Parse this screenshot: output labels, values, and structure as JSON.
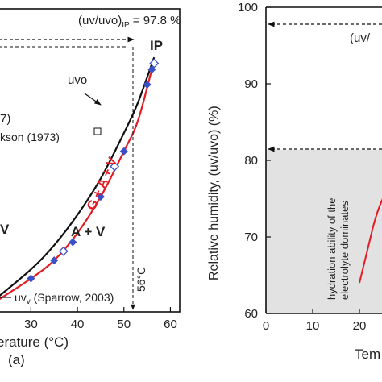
{
  "left_panel": {
    "ratio_label": "(uv/uvo)",
    "ratio_sub": "IP",
    "ratio_value": " = 97.8 %",
    "ip_label": "IP",
    "uvo_label": "uvo",
    "ref_1_fragment": "7)",
    "ref_2_fragment": "kson (1973)",
    "region_g_a_v": "G + A + V",
    "region_a_v": "A + V",
    "region_v_fragment": "V",
    "temp_marker": "56°C",
    "uv_legend_symbol": "uv",
    "uv_legend_text": " (Sparrow, 2003)",
    "xlabel_fragment": "erature (°C)",
    "panel_label": "(a)",
    "colors": {
      "uvo_curve": "#111111",
      "uv_curve": "#e31b23",
      "points": "#3a50c8"
    }
  },
  "right_panel": {
    "ylabel": "Relative humidity, (uv/uvo) (%)",
    "xlabel_fragment": "Tem",
    "ratio_fragment": "(uv/",
    "shaded_text_line1": "hydration ability of the",
    "shaded_text_line2": "electrolyte dominates",
    "colors": {
      "shade": "#e2e2e2",
      "curve": "#e31b23"
    }
  },
  "chart_data": [
    {
      "type": "line",
      "title": "",
      "xlabel": "Temperature (°C)",
      "ylabel": "",
      "xlim": [
        23,
        62
      ],
      "x_ticks": [
        30,
        40,
        50,
        60
      ],
      "series": [
        {
          "name": "uvo",
          "x": [
            23,
            30,
            35,
            40,
            45,
            50,
            53,
            56.5
          ],
          "y": [
            5,
            14,
            22,
            32,
            44,
            59,
            69,
            84
          ]
        },
        {
          "name": "uv (Sparrow, 2003)",
          "x": [
            23,
            30,
            35,
            40,
            45,
            50,
            53,
            56
          ],
          "y": [
            4,
            11,
            17,
            26,
            38,
            53,
            63,
            80
          ]
        }
      ],
      "points": {
        "x": [
          30,
          35,
          39,
          45,
          50,
          55,
          56
        ],
        "y": [
          11,
          17,
          23,
          38,
          53,
          75,
          80
        ]
      },
      "open_points": {
        "x": [
          37,
          48,
          56.5
        ],
        "y": [
          20,
          48,
          82
        ]
      },
      "annotations": [
        "(uv/uvo)IP = 97.8 %",
        "IP",
        "uvo",
        "G + A + V",
        "A + V",
        "56°C",
        "(a)"
      ]
    },
    {
      "type": "line",
      "title": "",
      "xlabel": "Tem",
      "ylabel": "Relative humidity, (uv/uvo) (%)",
      "xlim": [
        0,
        32
      ],
      "ylim": [
        60,
        100
      ],
      "x_ticks": [
        0,
        10,
        20
      ],
      "y_ticks": [
        60,
        70,
        80,
        90,
        100
      ],
      "reference_lines": [
        97.8,
        81.4
      ],
      "shaded_below": 81.4,
      "series": [
        {
          "name": "",
          "x": [
            20,
            21,
            22,
            23,
            24,
            25,
            26,
            27,
            28
          ],
          "y": [
            64,
            66.5,
            69,
            71.5,
            73.5,
            75,
            76,
            77,
            77.5
          ]
        }
      ]
    }
  ]
}
